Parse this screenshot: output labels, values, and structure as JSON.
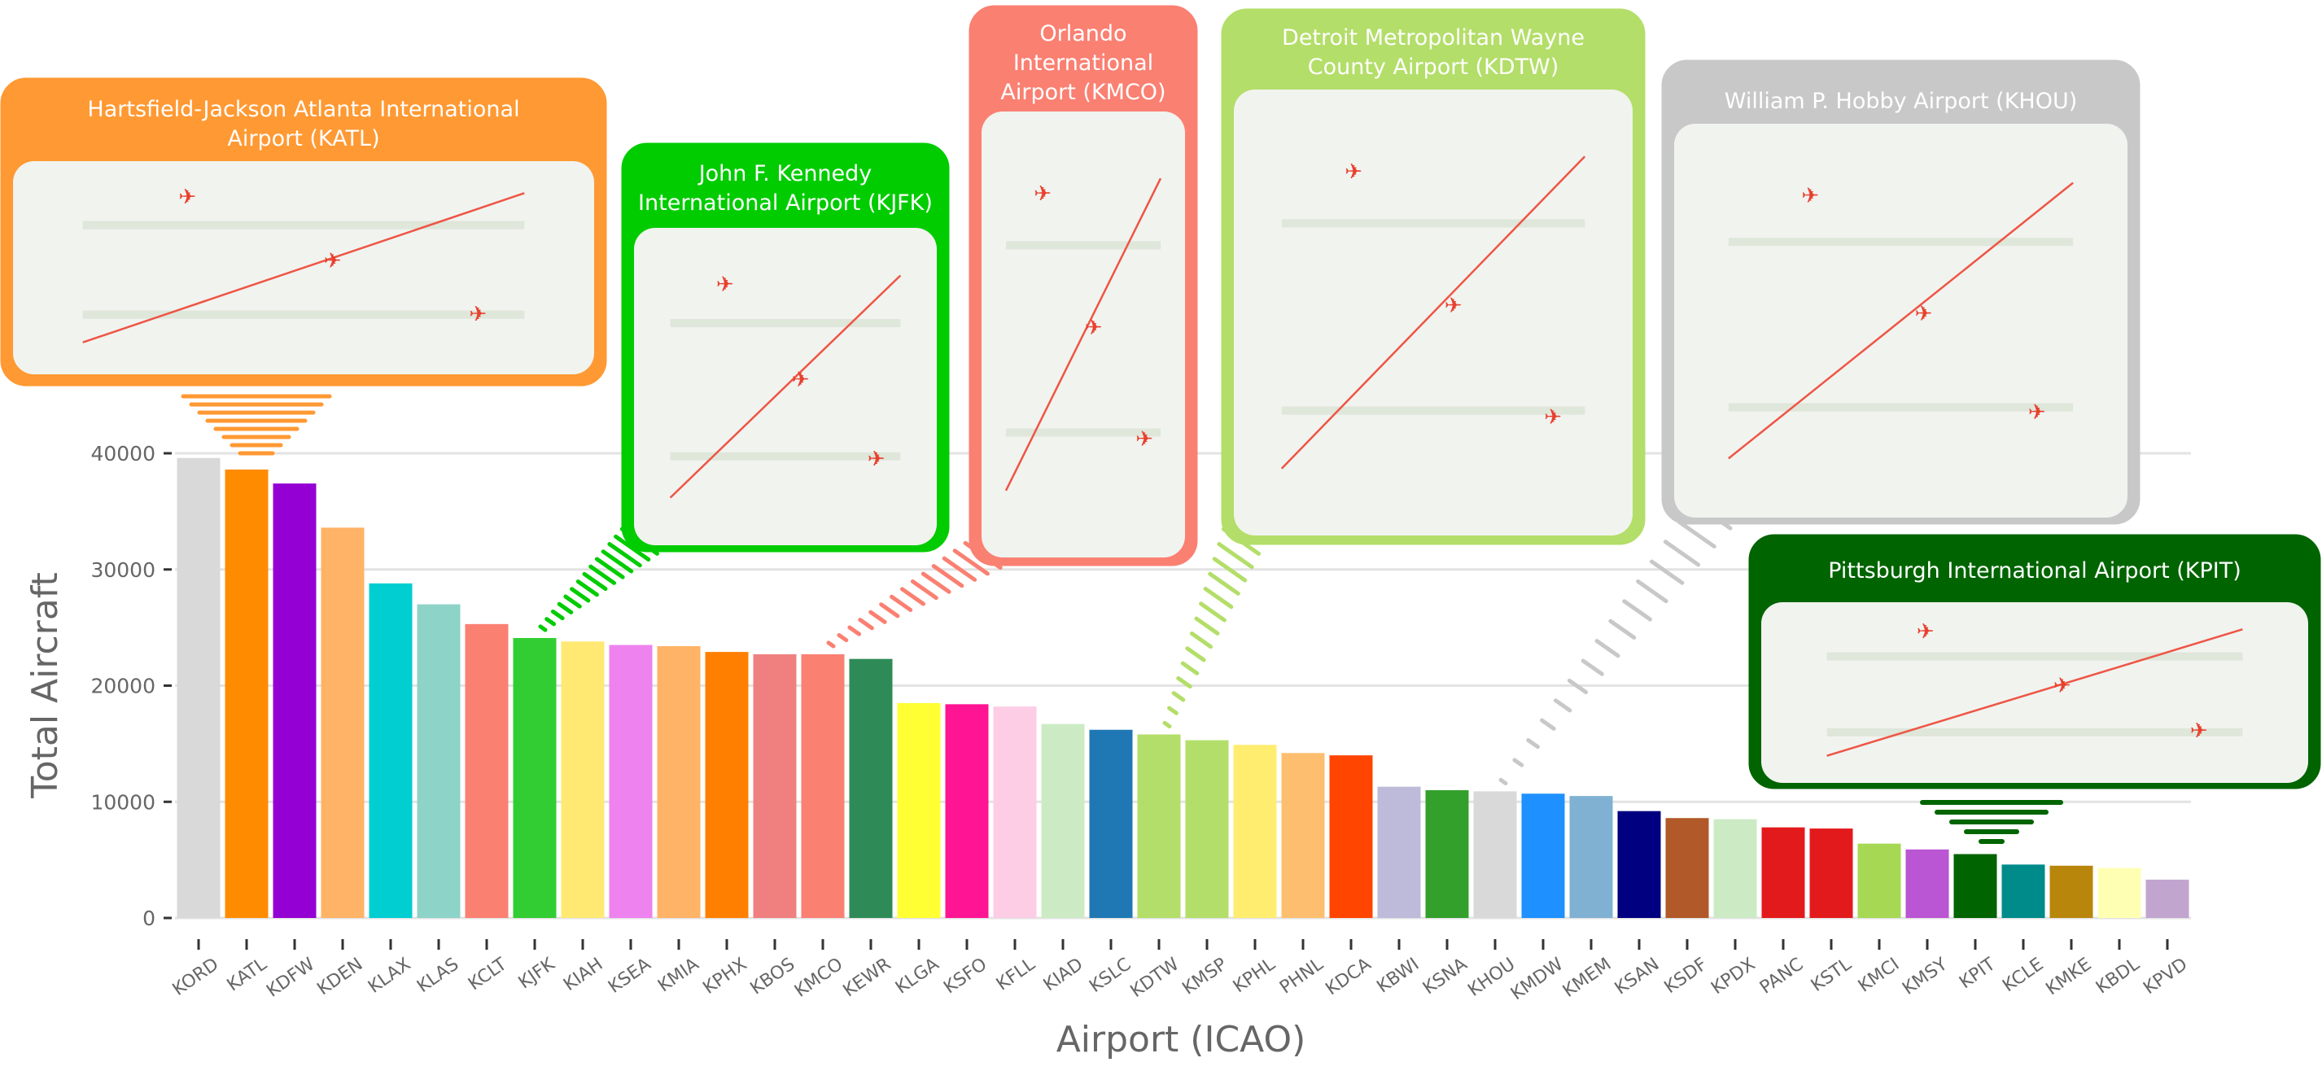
{
  "chart_data": {
    "type": "bar",
    "title": "",
    "xlabel": "Airport (ICAO)",
    "ylabel": "Total Aircraft",
    "ylim": [
      0,
      42000
    ],
    "yticks": [
      0,
      10000,
      20000,
      30000,
      40000
    ],
    "grid": "horizontal",
    "categories": [
      "KORD",
      "KATL",
      "KDFW",
      "KDEN",
      "KLAX",
      "KLAS",
      "KCLT",
      "KJFK",
      "KIAH",
      "KSEA",
      "KMIA",
      "KPHX",
      "KBOS",
      "KMCO",
      "KEWR",
      "KLGA",
      "KSFO",
      "KFLL",
      "KIAD",
      "KSLC",
      "KDTW",
      "KMSP",
      "KPHL",
      "PHNL",
      "KDCA",
      "KBWI",
      "KSNA",
      "KHOU",
      "KMDW",
      "KMEM",
      "KSAN",
      "KSDF",
      "KPDX",
      "PANC",
      "KSTL",
      "KMCI",
      "KMSY",
      "KPIT",
      "KCLE",
      "KMKE",
      "KBDL",
      "KPVD"
    ],
    "values": [
      39600,
      38600,
      37400,
      33600,
      28800,
      27000,
      25300,
      24100,
      23800,
      23500,
      23400,
      22900,
      22700,
      22700,
      22300,
      18500,
      18400,
      18200,
      16700,
      16200,
      15800,
      15300,
      14900,
      14200,
      14000,
      11300,
      11000,
      10900,
      10700,
      10500,
      9200,
      8600,
      8500,
      7800,
      7700,
      6400,
      5900,
      5500,
      4600,
      4500,
      4300,
      3300
    ],
    "colors": [
      "#d9d9d9",
      "#ff8c00",
      "#9400d3",
      "#ffb366",
      "#00ced1",
      "#8dd3c7",
      "#fa8072",
      "#32cd32",
      "#ffe973",
      "#ee82ee",
      "#ffb366",
      "#ff8000",
      "#f08080",
      "#fa8072",
      "#2e8b57",
      "#ffff33",
      "#ff1493",
      "#fccde5",
      "#ccebc5",
      "#1f78b4",
      "#b3de69",
      "#b3de69",
      "#ffed6f",
      "#fdbf6f",
      "#ff4500",
      "#bebada",
      "#33a02c",
      "#d9d9d9",
      "#1e90ff",
      "#80b1d3",
      "#000080",
      "#b15928",
      "#ccebc5",
      "#e31a1c",
      "#e31a1c",
      "#a6d854",
      "#ba55d3",
      "#006400",
      "#008b8b",
      "#b8860b",
      "#ffffb3",
      "#c2a5cf"
    ],
    "callouts": [
      {
        "airport": "KATL",
        "title_lines": [
          "Hartsfield-Jackson Atlanta International",
          "Airport (KATL)"
        ],
        "color": "#ff9933"
      },
      {
        "airport": "KJFK",
        "title_lines": [
          "John F. Kennedy",
          "International Airport (KJFK)"
        ],
        "color": "#00cc00"
      },
      {
        "airport": "KMCO",
        "title_lines": [
          "Orlando",
          "International",
          "Airport (KMCO)"
        ],
        "color": "#fa8072"
      },
      {
        "airport": "KDTW",
        "title_lines": [
          "Detroit Metropolitan Wayne",
          "County Airport (KDTW)"
        ],
        "color": "#b3de69"
      },
      {
        "airport": "KHOU",
        "title_lines": [
          "William P. Hobby Airport (KHOU)"
        ],
        "color": "#c8c8c8"
      },
      {
        "airport": "KPIT",
        "title_lines": [
          "Pittsburgh International Airport (KPIT)"
        ],
        "color": "#006400"
      }
    ]
  }
}
